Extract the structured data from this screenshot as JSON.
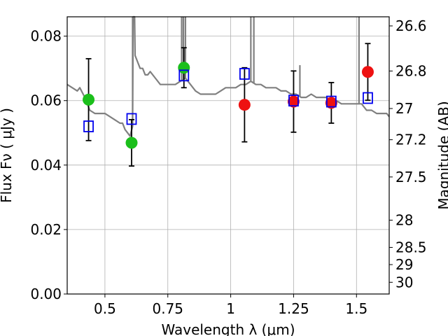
{
  "chart_data": {
    "type": "scatter",
    "xlabel": "Wavelength  λ (μm)",
    "ylabel": "Flux  Fν  ( μJy )",
    "ylabel_right": "Magnitude (AB)",
    "xlim": [
      0.35,
      1.63
    ],
    "ylim": [
      0.0,
      0.086
    ],
    "grid": true,
    "x_ticks": [
      0.5,
      0.75,
      1.0,
      1.25,
      1.5
    ],
    "x_tick_labels": [
      "0.5",
      "0.75",
      "1",
      "1.25",
      "1.5"
    ],
    "y_ticks": [
      0.0,
      0.02,
      0.04,
      0.06,
      0.08
    ],
    "y_tick_labels": [
      "0.00",
      "0.02",
      "0.04",
      "0.06",
      "0.08"
    ],
    "right_ticks": [
      26.6,
      26.8,
      27.0,
      27.2,
      27.5,
      28.0,
      28.5,
      29.0,
      30.0
    ],
    "right_tick_labels": [
      "26.6",
      "26.8",
      "27",
      "27.2",
      "27.5",
      "28",
      "28.5",
      "29",
      "30"
    ],
    "series": [
      {
        "name": "",
        "kind": "points",
        "marker": "circle",
        "color": "#1bbf1b",
        "x": [
          0.435,
          0.606,
          0.814
        ],
        "y": [
          0.0603,
          0.0469,
          0.0702
        ],
        "err": [
          0.0127,
          0.0072,
          0.0062
        ]
      },
      {
        "name": "",
        "kind": "points",
        "marker": "circle",
        "color": "#ee1111",
        "x": [
          1.055,
          1.25,
          1.4,
          1.545
        ],
        "y": [
          0.0587,
          0.0597,
          0.0593,
          0.0689
        ],
        "err": [
          0.0115,
          0.0095,
          0.0063,
          0.0088
        ]
      },
      {
        "name": "",
        "kind": "points",
        "marker": "square",
        "color": "#0000ee",
        "x": [
          0.435,
          0.606,
          0.814,
          1.055,
          1.25,
          1.4,
          1.545
        ],
        "y": [
          0.052,
          0.0543,
          0.0678,
          0.0683,
          0.06,
          0.0597,
          0.0608
        ]
      },
      {
        "name": "",
        "kind": "line",
        "color": "#808080",
        "x": [
          0.35,
          0.37,
          0.39,
          0.4,
          0.42,
          0.44,
          0.46,
          0.48,
          0.5,
          0.52,
          0.54,
          0.56,
          0.57,
          0.58,
          0.59,
          0.6,
          0.61,
          0.612,
          0.618,
          0.62,
          0.63,
          0.64,
          0.65,
          0.66,
          0.67,
          0.68,
          0.7,
          0.72,
          0.74,
          0.76,
          0.78,
          0.8,
          0.82,
          0.84,
          0.86,
          0.88,
          0.9,
          0.92,
          0.94,
          0.96,
          0.98,
          1.0,
          1.02,
          1.04,
          1.06,
          1.08,
          1.1,
          1.12,
          1.14,
          1.16,
          1.18,
          1.2,
          1.22,
          1.24,
          1.26,
          1.28,
          1.3,
          1.32,
          1.34,
          1.36,
          1.38,
          1.4,
          1.42,
          1.44,
          1.46,
          1.48,
          1.5,
          1.52,
          1.54,
          1.56,
          1.58,
          1.6,
          1.62,
          1.63
        ],
        "y": [
          0.065,
          0.064,
          0.063,
          0.064,
          0.061,
          0.057,
          0.056,
          0.056,
          0.056,
          0.055,
          0.054,
          0.053,
          0.053,
          0.051,
          0.05,
          0.049,
          0.052,
          0.086,
          0.086,
          0.074,
          0.072,
          0.07,
          0.07,
          0.068,
          0.068,
          0.069,
          0.067,
          0.065,
          0.065,
          0.065,
          0.065,
          0.066,
          0.067,
          0.065,
          0.063,
          0.062,
          0.062,
          0.062,
          0.062,
          0.063,
          0.064,
          0.064,
          0.064,
          0.065,
          0.065,
          0.066,
          0.065,
          0.065,
          0.064,
          0.064,
          0.064,
          0.063,
          0.063,
          0.062,
          0.062,
          0.061,
          0.061,
          0.062,
          0.061,
          0.061,
          0.061,
          0.06,
          0.06,
          0.059,
          0.059,
          0.059,
          0.059,
          0.059,
          0.057,
          0.057,
          0.056,
          0.056,
          0.056,
          0.055
        ]
      }
    ],
    "emission_spikes": [
      {
        "x": 0.61,
        "y_top": 0.086
      },
      {
        "x": 0.613,
        "y_top": 0.086
      },
      {
        "x": 0.805,
        "y_top": 0.086
      },
      {
        "x": 0.812,
        "y_top": 0.086
      },
      {
        "x": 0.82,
        "y_top": 0.086
      },
      {
        "x": 1.08,
        "y_top": 0.086
      },
      {
        "x": 1.092,
        "y_top": 0.086
      },
      {
        "x": 1.275,
        "y_top": 0.071
      },
      {
        "x": 1.51,
        "y_top": 0.086
      }
    ]
  }
}
